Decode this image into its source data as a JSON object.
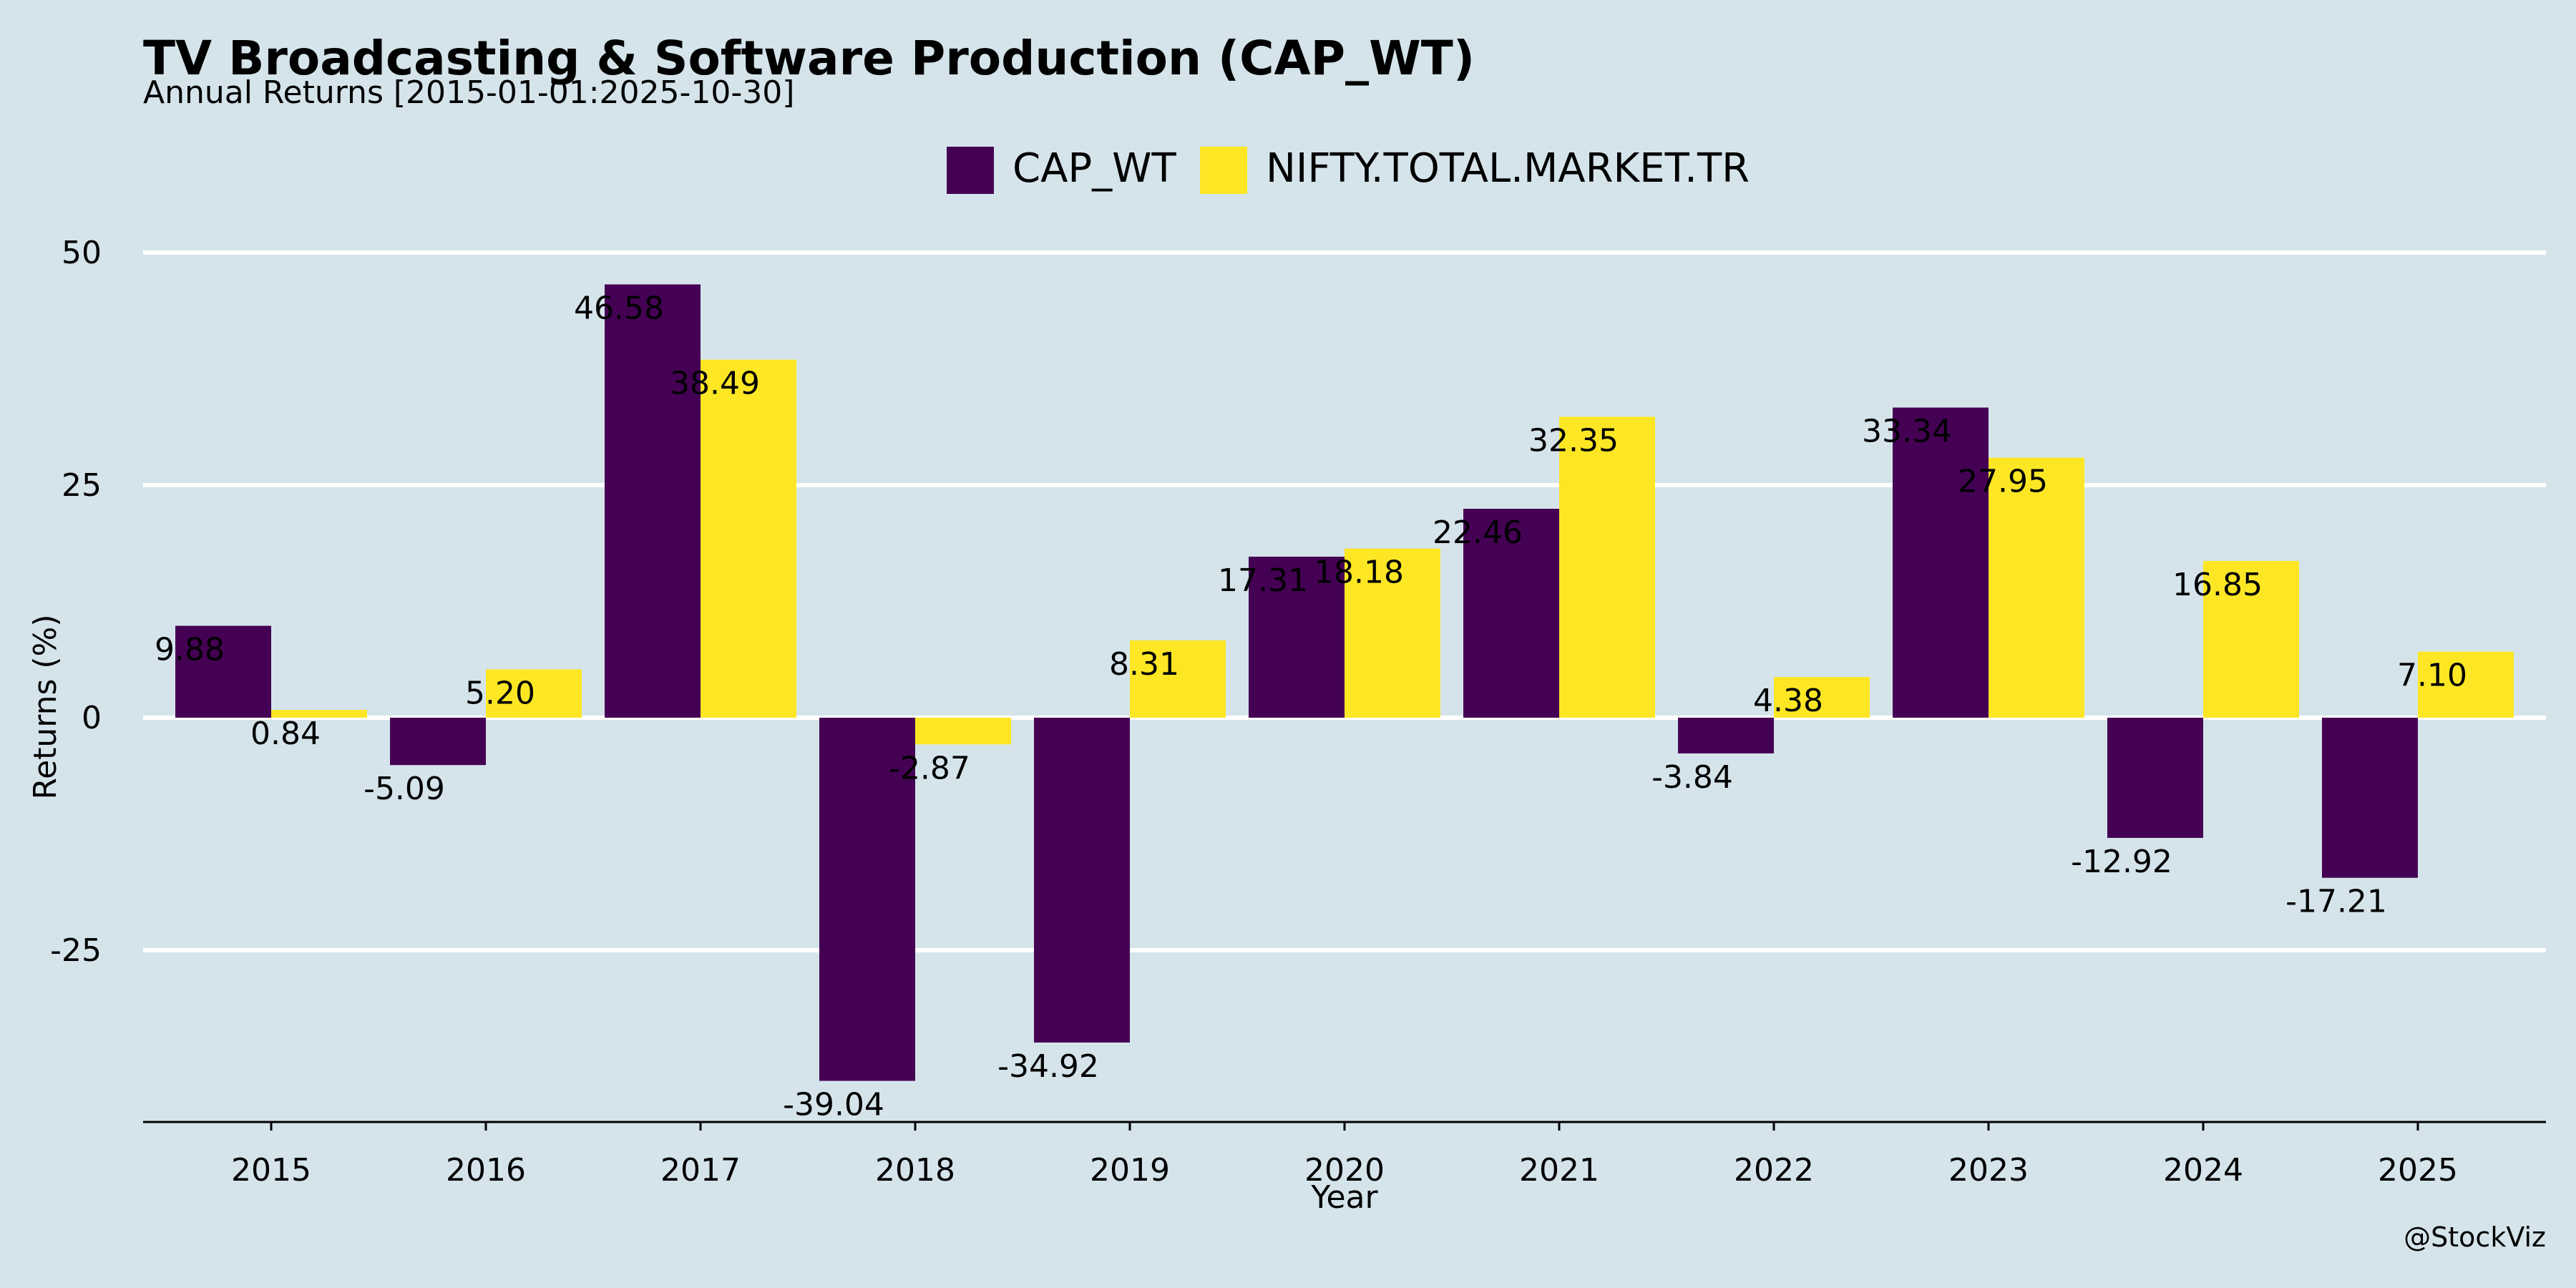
{
  "chart_data": {
    "type": "bar",
    "title": "TV Broadcasting & Software Production (CAP_WT)",
    "subtitle": "Annual Returns [2015-01-01:2025-10-30]",
    "xlabel": "Year",
    "ylabel": "Returns (%)",
    "categories": [
      "2015",
      "2016",
      "2017",
      "2018",
      "2019",
      "2020",
      "2021",
      "2022",
      "2023",
      "2024",
      "2025"
    ],
    "series": [
      {
        "name": "CAP_WT",
        "color": "#440154",
        "values": [
          9.88,
          -5.09,
          46.58,
          -39.04,
          -34.92,
          17.31,
          22.46,
          -3.84,
          33.34,
          -12.92,
          -17.21
        ],
        "labels": [
          "9.88",
          "-5.09",
          "46.58",
          "-39.04",
          "-34.92",
          "17.31",
          "22.46",
          "-3.84",
          "33.34",
          "-12.92",
          "-17.21"
        ]
      },
      {
        "name": "NIFTY.TOTAL.MARKET.TR",
        "color": "#fde725",
        "values": [
          0.84,
          5.2,
          38.49,
          -2.87,
          8.31,
          18.18,
          32.35,
          4.38,
          27.95,
          16.85,
          7.1
        ],
        "labels": [
          "0.84",
          "5.20",
          "38.49",
          "-2.87",
          "8.31",
          "18.18",
          "32.35",
          "4.38",
          "27.95",
          "16.85",
          "7.10"
        ]
      }
    ],
    "yticks": [
      -25,
      0,
      25,
      50
    ],
    "ytick_labels": [
      "-25",
      "0",
      "25",
      "50"
    ],
    "ylim": [
      -43.3,
      50
    ],
    "grid": true,
    "legend_position": "top-center",
    "background_color": "#d5e4eb",
    "grid_color": "#ffffff",
    "watermark": "@StockViz"
  }
}
